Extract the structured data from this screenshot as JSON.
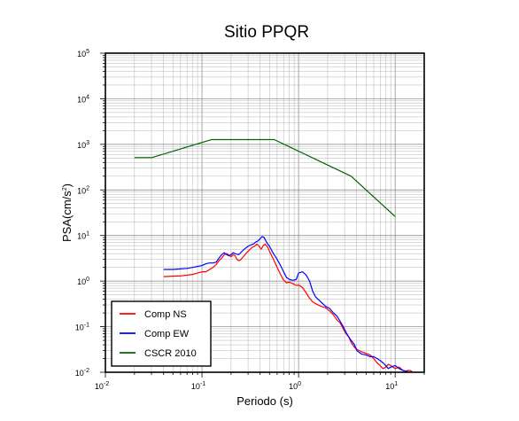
{
  "chart_data": {
    "type": "line",
    "title": "Sitio PPQR",
    "xlabel": "Periodo (s)",
    "ylabel_main": "PSA(cm/s",
    "ylabel_sup": "2",
    "ylabel_close": ")",
    "x_scale": "log",
    "y_scale": "log",
    "xlim": [
      0.01,
      20
    ],
    "ylim": [
      0.01,
      100000
    ],
    "grid": true,
    "legend_position": "bottom-left",
    "x_ticks": [
      {
        "base": "10",
        "exp": "-2",
        "value": 0.01
      },
      {
        "base": "10",
        "exp": "-1",
        "value": 0.1
      },
      {
        "base": "10",
        "exp": "0",
        "value": 1
      },
      {
        "base": "10",
        "exp": "1",
        "value": 10
      }
    ],
    "y_ticks": [
      {
        "base": "10",
        "exp": "-2",
        "value": 0.01
      },
      {
        "base": "10",
        "exp": "-1",
        "value": 0.1
      },
      {
        "base": "10",
        "exp": "0",
        "value": 1
      },
      {
        "base": "10",
        "exp": "1",
        "value": 10
      },
      {
        "base": "10",
        "exp": "2",
        "value": 100
      },
      {
        "base": "10",
        "exp": "3",
        "value": 1000
      },
      {
        "base": "10",
        "exp": "4",
        "value": 10000
      },
      {
        "base": "10",
        "exp": "5",
        "value": 100000
      }
    ],
    "series": [
      {
        "name": "Comp NS",
        "color": "#ff0000",
        "points": [
          [
            0.04,
            1.25
          ],
          [
            0.05,
            1.28
          ],
          [
            0.06,
            1.3
          ],
          [
            0.07,
            1.35
          ],
          [
            0.08,
            1.4
          ],
          [
            0.09,
            1.5
          ],
          [
            0.1,
            1.6
          ],
          [
            0.11,
            1.6
          ],
          [
            0.12,
            1.8
          ],
          [
            0.13,
            2.0
          ],
          [
            0.14,
            2.3
          ],
          [
            0.15,
            2.8
          ],
          [
            0.16,
            3.2
          ],
          [
            0.17,
            3.8
          ],
          [
            0.18,
            4.0
          ],
          [
            0.19,
            3.7
          ],
          [
            0.2,
            3.4
          ],
          [
            0.21,
            3.8
          ],
          [
            0.22,
            3.6
          ],
          [
            0.23,
            3.0
          ],
          [
            0.24,
            2.8
          ],
          [
            0.25,
            2.9
          ],
          [
            0.27,
            3.5
          ],
          [
            0.29,
            4.2
          ],
          [
            0.31,
            4.8
          ],
          [
            0.33,
            5.5
          ],
          [
            0.35,
            5.8
          ],
          [
            0.37,
            6.5
          ],
          [
            0.39,
            5.8
          ],
          [
            0.41,
            5.0
          ],
          [
            0.43,
            6.0
          ],
          [
            0.45,
            6.5
          ],
          [
            0.48,
            5.5
          ],
          [
            0.5,
            4.5
          ],
          [
            0.55,
            3.0
          ],
          [
            0.6,
            2.0
          ],
          [
            0.65,
            1.4
          ],
          [
            0.7,
            1.05
          ],
          [
            0.75,
            0.92
          ],
          [
            0.8,
            0.95
          ],
          [
            0.85,
            0.9
          ],
          [
            0.9,
            0.85
          ],
          [
            0.95,
            0.8
          ],
          [
            1.0,
            0.82
          ],
          [
            1.1,
            0.72
          ],
          [
            1.2,
            0.55
          ],
          [
            1.3,
            0.42
          ],
          [
            1.4,
            0.35
          ],
          [
            1.5,
            0.32
          ],
          [
            1.7,
            0.28
          ],
          [
            1.9,
            0.26
          ],
          [
            2.1,
            0.22
          ],
          [
            2.3,
            0.18
          ],
          [
            2.5,
            0.14
          ],
          [
            2.7,
            0.12
          ],
          [
            2.9,
            0.09
          ],
          [
            3.1,
            0.07
          ],
          [
            3.3,
            0.06
          ],
          [
            3.5,
            0.045
          ],
          [
            3.8,
            0.035
          ],
          [
            4.0,
            0.032
          ],
          [
            4.5,
            0.028
          ],
          [
            5.0,
            0.026
          ],
          [
            5.5,
            0.024
          ],
          [
            6.0,
            0.02
          ],
          [
            6.5,
            0.016
          ],
          [
            7.0,
            0.014
          ],
          [
            7.5,
            0.012
          ],
          [
            8.0,
            0.013
          ],
          [
            8.5,
            0.015
          ],
          [
            9.0,
            0.014
          ],
          [
            10.0,
            0.012
          ],
          [
            11.0,
            0.013
          ],
          [
            12.0,
            0.011
          ],
          [
            13.0,
            0.0105
          ],
          [
            14.0,
            0.011
          ],
          [
            15.0,
            0.0105
          ]
        ]
      },
      {
        "name": "Comp EW",
        "color": "#0000ff",
        "points": [
          [
            0.04,
            1.8
          ],
          [
            0.05,
            1.8
          ],
          [
            0.06,
            1.85
          ],
          [
            0.07,
            1.9
          ],
          [
            0.08,
            2.0
          ],
          [
            0.09,
            2.1
          ],
          [
            0.1,
            2.2
          ],
          [
            0.11,
            2.4
          ],
          [
            0.12,
            2.5
          ],
          [
            0.13,
            2.5
          ],
          [
            0.14,
            2.6
          ],
          [
            0.15,
            3.2
          ],
          [
            0.16,
            3.8
          ],
          [
            0.17,
            4.2
          ],
          [
            0.18,
            3.8
          ],
          [
            0.19,
            3.6
          ],
          [
            0.2,
            3.8
          ],
          [
            0.21,
            4.2
          ],
          [
            0.22,
            4.0
          ],
          [
            0.24,
            3.8
          ],
          [
            0.26,
            4.5
          ],
          [
            0.28,
            5.2
          ],
          [
            0.3,
            5.8
          ],
          [
            0.32,
            6.2
          ],
          [
            0.34,
            6.5
          ],
          [
            0.36,
            7.2
          ],
          [
            0.38,
            7.6
          ],
          [
            0.4,
            8.5
          ],
          [
            0.42,
            9.5
          ],
          [
            0.44,
            9.0
          ],
          [
            0.46,
            7.5
          ],
          [
            0.48,
            6.5
          ],
          [
            0.5,
            5.8
          ],
          [
            0.55,
            4.0
          ],
          [
            0.6,
            3.0
          ],
          [
            0.65,
            2.2
          ],
          [
            0.7,
            1.6
          ],
          [
            0.75,
            1.2
          ],
          [
            0.8,
            1.1
          ],
          [
            0.85,
            1.05
          ],
          [
            0.9,
            1.05
          ],
          [
            0.95,
            1.1
          ],
          [
            1.0,
            1.5
          ],
          [
            1.1,
            1.6
          ],
          [
            1.2,
            1.35
          ],
          [
            1.3,
            1.0
          ],
          [
            1.4,
            0.6
          ],
          [
            1.5,
            0.45
          ],
          [
            1.7,
            0.35
          ],
          [
            1.9,
            0.28
          ],
          [
            2.1,
            0.25
          ],
          [
            2.3,
            0.2
          ],
          [
            2.5,
            0.17
          ],
          [
            2.7,
            0.13
          ],
          [
            2.9,
            0.1
          ],
          [
            3.1,
            0.075
          ],
          [
            3.3,
            0.06
          ],
          [
            3.5,
            0.05
          ],
          [
            3.8,
            0.04
          ],
          [
            4.0,
            0.03
          ],
          [
            4.5,
            0.025
          ],
          [
            5.0,
            0.024
          ],
          [
            5.5,
            0.022
          ],
          [
            6.0,
            0.022
          ],
          [
            6.5,
            0.02
          ],
          [
            7.0,
            0.018
          ],
          [
            7.5,
            0.016
          ],
          [
            8.0,
            0.014
          ],
          [
            8.5,
            0.012
          ],
          [
            9.0,
            0.013
          ],
          [
            10.0,
            0.014
          ],
          [
            11.0,
            0.012
          ],
          [
            12.0,
            0.011
          ],
          [
            13.0,
            0.0105
          ],
          [
            13.5,
            0.011
          ]
        ]
      },
      {
        "name": "CSCR 2010",
        "color": "#006400",
        "points": [
          [
            0.02,
            510
          ],
          [
            0.03,
            510
          ],
          [
            0.125,
            1270
          ],
          [
            0.56,
            1270
          ],
          [
            3.5,
            200
          ],
          [
            10.0,
            26
          ]
        ]
      }
    ]
  }
}
